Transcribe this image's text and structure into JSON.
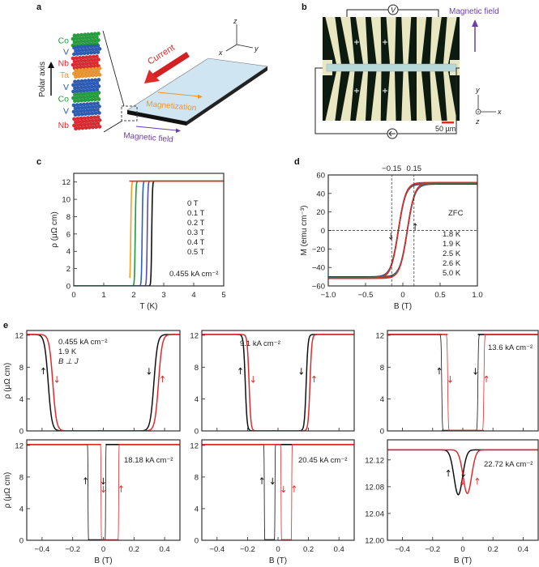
{
  "panel_labels": {
    "a": "a",
    "b": "b",
    "c": "c",
    "d": "d",
    "e": "e"
  },
  "panel_a": {
    "layers": [
      {
        "element": "Co",
        "color": "#22a03c"
      },
      {
        "element": "V",
        "color": "#2a5cb8"
      },
      {
        "element": "Nb",
        "color": "#e0282e"
      },
      {
        "element": "Ta",
        "color": "#f0962a"
      },
      {
        "element": "V",
        "color": "#2a5cb8"
      },
      {
        "element": "Co",
        "color": "#22a03c"
      },
      {
        "element": "V",
        "color": "#2a5cb8"
      },
      {
        "element": "Nb",
        "color": "#e0282e"
      }
    ],
    "polar_axis": "Polar axis",
    "current": "Current",
    "magnetization": "Magnetization",
    "magnetic_field": "Magnetic field",
    "axes": {
      "x": "x",
      "y": "y",
      "z": "z"
    }
  },
  "panel_b": {
    "voltmeter": "V",
    "magnetic_field": "Magnetic field",
    "scale_bar": "50 µm",
    "axes": {
      "x": "x",
      "y": "y",
      "z": "z"
    }
  },
  "chart_data": [
    {
      "id": "c",
      "type": "line",
      "xlabel": "T (K)",
      "ylabel": "ρ (μΩ cm)",
      "xlim": [
        0,
        5
      ],
      "ylim": [
        0,
        13
      ],
      "xticks": [
        0,
        1,
        2,
        3,
        4,
        5
      ],
      "xtick_labels": [
        "0",
        "1",
        "2",
        "3",
        "4",
        "5"
      ],
      "yticks": [
        0,
        2,
        4,
        6,
        8,
        10,
        12
      ],
      "ytick_labels": [
        "0",
        "2",
        "4",
        "6",
        "8",
        "10",
        "12"
      ],
      "annotation": "0.455 kA cm⁻²",
      "normal_resistivity": 12.1,
      "series": [
        {
          "name": "0 T",
          "color": "#111111",
          "tc": 2.6
        },
        {
          "name": "0.1 T",
          "color": "#5a4fa8",
          "tc": 2.45
        },
        {
          "name": "0.2 T",
          "color": "#2a62c0",
          "tc": 2.28
        },
        {
          "name": "0.3 T",
          "color": "#1f9a3a",
          "tc": 2.05
        },
        {
          "name": "0.4 T",
          "color": "#f2a020",
          "tc": 1.9,
          "t_min": 1.87
        },
        {
          "name": "0.5 T",
          "color": "#e02a2a",
          "tc": 1.5,
          "t_min": 1.85
        }
      ]
    },
    {
      "id": "d",
      "type": "line",
      "xlabel": "B (T)",
      "ylabel": "M (emu cm⁻³)",
      "xlim": [
        -1,
        1
      ],
      "ylim": [
        -60,
        60
      ],
      "xticks": [
        -1,
        -0.5,
        0,
        0.5,
        1
      ],
      "xtick_labels": [
        "−1.0",
        "−0.5",
        "0",
        "0.5",
        "1.0"
      ],
      "yticks": [
        -60,
        -40,
        -20,
        0,
        20,
        40,
        60
      ],
      "ytick_labels": [
        "−60",
        "−40",
        "−20",
        "0",
        "20",
        "40",
        "60"
      ],
      "markers": [
        {
          "value": -0.15,
          "label": "−0.15"
        },
        {
          "value": 0.15,
          "label": "0.15"
        }
      ],
      "legend_title": "ZFC",
      "saturation_magnetization": 51,
      "coercive_field": 0.06,
      "series": [
        {
          "name": "1.8 K",
          "color": "#111111"
        },
        {
          "name": "1.9 K",
          "color": "#5a4fa8"
        },
        {
          "name": "2.5 K",
          "color": "#2a62c0"
        },
        {
          "name": "2.6 K",
          "color": "#1f9a3a"
        },
        {
          "name": "5.0 K",
          "color": "#e02a2a"
        }
      ]
    },
    {
      "id": "e1",
      "type": "line",
      "xlim": [
        -0.5,
        0.5
      ],
      "ylim": [
        0,
        12.6
      ],
      "ylabel": "ρ (μΩ cm)",
      "xticks": [
        -0.4,
        -0.2,
        0,
        0.2,
        0.4
      ],
      "yticks": [
        0,
        4,
        8,
        12
      ],
      "ytick_labels": [
        "0",
        "4",
        "8",
        "12"
      ],
      "annotations": [
        "0.455 kA cm⁻²",
        "1.9 K",
        "B ⊥ J"
      ],
      "normal_resistivity": 12.1,
      "series": [
        {
          "sweep": "up",
          "color": "#111111",
          "zero_range": [
            -0.36,
            0.33
          ],
          "width": 0.012
        },
        {
          "sweep": "down",
          "color": "#e02a2a",
          "zero_range": [
            -0.33,
            0.36
          ],
          "width": 0.012
        }
      ]
    },
    {
      "id": "e2",
      "type": "line",
      "xlim": [
        -0.5,
        0.5
      ],
      "ylim": [
        0,
        12.6
      ],
      "xticks": [
        -0.4,
        -0.2,
        0,
        0.2,
        0.4
      ],
      "yticks": [
        0,
        4,
        8,
        12
      ],
      "ytick_labels": [
        "0",
        "4",
        "8",
        "12"
      ],
      "annotations": [
        "9.1 kA cm⁻²"
      ],
      "normal_resistivity": 12.1,
      "series": [
        {
          "sweep": "up",
          "color": "#111111",
          "zero_range": [
            -0.215,
            0.185
          ],
          "width": 0.006
        },
        {
          "sweep": "down",
          "color": "#e02a2a",
          "zero_range": [
            -0.19,
            0.21
          ],
          "width": 0.006
        }
      ]
    },
    {
      "id": "e3",
      "type": "line",
      "xlim": [
        -0.5,
        0.5
      ],
      "ylim": [
        0,
        12.6
      ],
      "xticks": [
        -0.4,
        -0.2,
        0,
        0.2,
        0.4
      ],
      "yticks": [
        0,
        4,
        8,
        12
      ],
      "ytick_labels": [
        "0",
        "4",
        "8",
        "12"
      ],
      "annotations": [
        "13.6 kA cm⁻²"
      ],
      "normal_resistivity": 12.1,
      "series": [
        {
          "sweep": "up",
          "color": "#111111",
          "zero_range": [
            -0.14,
            0.1
          ],
          "width": 0.002
        },
        {
          "sweep": "down",
          "color": "#e02a2a",
          "zero_range": [
            -0.1,
            0.14
          ],
          "width": 0.002
        }
      ]
    },
    {
      "id": "e4",
      "type": "line",
      "xlim": [
        -0.5,
        0.5
      ],
      "ylim": [
        0,
        12.7
      ],
      "xlabel": "B (T)",
      "ylabel": "ρ (μΩ cm)",
      "xticks": [
        -0.4,
        -0.2,
        0,
        0.2,
        0.4
      ],
      "xtick_labels": [
        "−0.4",
        "−0.2",
        "0",
        "0.2",
        "0.4"
      ],
      "yticks": [
        0,
        4,
        8,
        12
      ],
      "ytick_labels": [
        "0",
        "4",
        "8",
        "12"
      ],
      "annotations": [
        "18.18 kA cm⁻²"
      ],
      "normal_resistivity": 12.1,
      "series": [
        {
          "sweep": "up",
          "color": "#111111",
          "zero_range": [
            -0.1,
            0.015
          ],
          "width": 0.0008
        },
        {
          "sweep": "down",
          "color": "#e02a2a",
          "zero_range": [
            -0.015,
            0.1
          ],
          "width": 0.0008
        }
      ]
    },
    {
      "id": "e5",
      "type": "line",
      "xlim": [
        -0.5,
        0.5
      ],
      "ylim": [
        0,
        12.7
      ],
      "xlabel": "B (T)",
      "xticks": [
        -0.4,
        -0.2,
        0,
        0.2,
        0.4
      ],
      "xtick_labels": [
        "−0.4",
        "−0.2",
        "0",
        "0.2",
        "0.4"
      ],
      "yticks": [
        0,
        4,
        8,
        12
      ],
      "ytick_labels": [
        "0",
        "4",
        "8",
        "12"
      ],
      "annotations": [
        "20.45 kA cm⁻²"
      ],
      "normal_resistivity": 12.1,
      "series": [
        {
          "sweep": "up",
          "color": "#111111",
          "zero_range": [
            -0.09,
            -0.02
          ],
          "width": 0.0008
        },
        {
          "sweep": "down",
          "color": "#e02a2a",
          "zero_range": [
            0.02,
            0.09
          ],
          "width": 0.0008
        }
      ]
    },
    {
      "id": "e6",
      "type": "line",
      "xlim": [
        -0.5,
        0.5
      ],
      "ylim": [
        12.0,
        12.15
      ],
      "xlabel": "B (T)",
      "xticks": [
        -0.4,
        -0.2,
        0,
        0.2,
        0.4
      ],
      "xtick_labels": [
        "−0.4",
        "−0.2",
        "0",
        "0.2",
        "0.4"
      ],
      "yticks": [
        12.0,
        12.04,
        12.08,
        12.12
      ],
      "ytick_labels": [
        "12.00",
        "12.04",
        "12.08",
        "12.12"
      ],
      "annotations": [
        "22.72 kA cm⁻²"
      ],
      "normal_resistivity": 12.135,
      "series": [
        {
          "sweep": "up",
          "color": "#111111",
          "dip_center": -0.03,
          "dip_min": 12.068,
          "width": 0.04
        },
        {
          "sweep": "down",
          "color": "#e02a2a",
          "dip_center": 0.03,
          "dip_min": 12.07,
          "width": 0.04
        }
      ]
    }
  ]
}
